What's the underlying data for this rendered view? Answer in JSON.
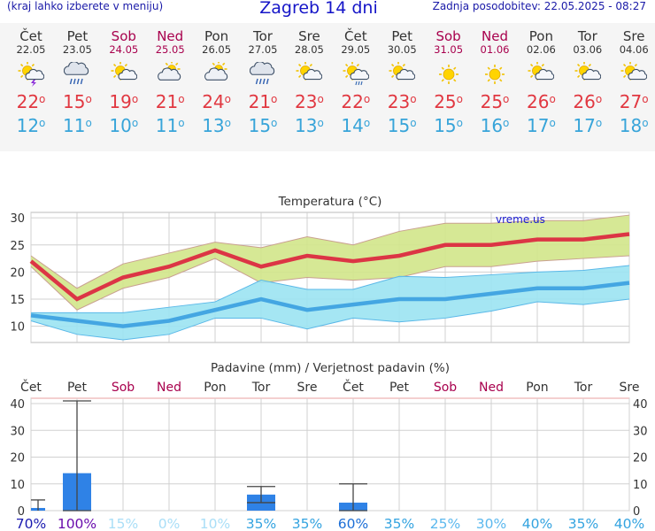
{
  "header": {
    "menu_hint": "(kraj lahko izberete v meniju)",
    "title": "Zagreb 14 dni",
    "updated": "Zadnja posodobitev: 22.05.2025 - 08:27"
  },
  "days": [
    {
      "name": "Čet",
      "date": "22.05",
      "weekend": false,
      "icon": "sun-cloud-storm-icon",
      "tmax": "22",
      "tmin": "12"
    },
    {
      "name": "Pet",
      "date": "23.05",
      "weekend": false,
      "icon": "cloud-rain-icon",
      "tmax": "15",
      "tmin": "11"
    },
    {
      "name": "Sob",
      "date": "24.05",
      "weekend": true,
      "icon": "sun-cloud-icon",
      "tmax": "19",
      "tmin": "10"
    },
    {
      "name": "Ned",
      "date": "25.05",
      "weekend": true,
      "icon": "partly-cloudy-icon",
      "tmax": "21",
      "tmin": "11"
    },
    {
      "name": "Pon",
      "date": "26.05",
      "weekend": false,
      "icon": "partly-cloudy-icon",
      "tmax": "24",
      "tmin": "13"
    },
    {
      "name": "Tor",
      "date": "27.05",
      "weekend": false,
      "icon": "cloud-rain-icon",
      "tmax": "21",
      "tmin": "15"
    },
    {
      "name": "Sre",
      "date": "28.05",
      "weekend": false,
      "icon": "sun-cloud-icon",
      "tmax": "23",
      "tmin": "13"
    },
    {
      "name": "Čet",
      "date": "29.05",
      "weekend": false,
      "icon": "sun-cloud-rain-icon",
      "tmax": "22",
      "tmin": "14"
    },
    {
      "name": "Pet",
      "date": "30.05",
      "weekend": false,
      "icon": "sun-cloud-icon",
      "tmax": "23",
      "tmin": "15"
    },
    {
      "name": "Sob",
      "date": "31.05",
      "weekend": true,
      "icon": "sun-icon",
      "tmax": "25",
      "tmin": "15"
    },
    {
      "name": "Ned",
      "date": "01.06",
      "weekend": true,
      "icon": "sun-icon",
      "tmax": "25",
      "tmin": "16"
    },
    {
      "name": "Pon",
      "date": "02.06",
      "weekend": false,
      "icon": "sun-cloud-icon",
      "tmax": "26",
      "tmin": "17"
    },
    {
      "name": "Tor",
      "date": "03.06",
      "weekend": false,
      "icon": "sun-cloud-icon",
      "tmax": "26",
      "tmin": "17"
    },
    {
      "name": "Sre",
      "date": "04.06",
      "weekend": false,
      "icon": "sun-cloud-icon",
      "tmax": "27",
      "tmin": "18"
    }
  ],
  "degree_symbol": "o",
  "chart_data": [
    {
      "type": "area",
      "title": "Temperatura (°C)",
      "watermark": "vreme.us",
      "ylim": [
        7,
        31
      ],
      "yticks": [
        10,
        15,
        20,
        25,
        30
      ],
      "grid": true,
      "x": [
        "22.05",
        "23.05",
        "24.05",
        "25.05",
        "26.05",
        "27.05",
        "28.05",
        "29.05",
        "30.05",
        "31.05",
        "01.06",
        "02.06",
        "03.06",
        "04.06"
      ],
      "series": [
        {
          "role": "max_band_upper",
          "values": [
            23,
            17,
            21.5,
            23.5,
            25.5,
            24.5,
            26.5,
            25,
            27.5,
            29,
            29,
            29.5,
            29.5,
            30.5
          ],
          "color": "#d2e58a"
        },
        {
          "role": "max_band_lower",
          "values": [
            21,
            13,
            17,
            19,
            22.5,
            18,
            19,
            18.5,
            19,
            21,
            21,
            22,
            22.5,
            23
          ]
        },
        {
          "role": "max",
          "values": [
            22,
            15,
            19,
            21,
            24,
            21,
            23,
            22,
            23,
            25,
            25,
            26,
            26,
            27
          ],
          "color": "#dc3545"
        },
        {
          "role": "min_band_upper",
          "values": [
            12.5,
            12.5,
            12.5,
            13.5,
            14.5,
            18.5,
            16.8,
            16.8,
            19.2,
            19,
            19.5,
            20,
            20.3,
            21.2
          ],
          "color": "#9be3f2"
        },
        {
          "role": "min_band_lower",
          "values": [
            11,
            8.5,
            7.5,
            8.5,
            11.5,
            11.5,
            9.5,
            11.5,
            10.8,
            11.5,
            12.8,
            14.5,
            14,
            15
          ],
          "color": "#5ab8e8"
        },
        {
          "role": "min",
          "values": [
            12,
            11,
            10,
            11,
            13,
            15,
            13,
            14,
            15,
            15,
            16,
            17,
            17,
            18
          ],
          "color": "#44a6e2"
        }
      ]
    },
    {
      "type": "bar",
      "title": "Padavine (mm) / Verjetnost padavin (%)",
      "ylim": [
        0,
        42
      ],
      "yticks": [
        0,
        10,
        20,
        30,
        40
      ],
      "grid": true,
      "categories": [
        "Čet",
        "Pet",
        "Sob",
        "Ned",
        "Pon",
        "Tor",
        "Sre",
        "Čet",
        "Pet",
        "Sob",
        "Ned",
        "Pon",
        "Tor",
        "Sre"
      ],
      "weekend": [
        false,
        false,
        true,
        true,
        false,
        false,
        false,
        false,
        false,
        true,
        true,
        false,
        false,
        false
      ],
      "precip_mm": [
        1,
        14,
        0,
        0,
        0,
        6,
        0,
        3,
        0,
        0,
        0,
        0,
        0,
        0
      ],
      "error_low": [
        null,
        0,
        null,
        null,
        null,
        3,
        null,
        0,
        null,
        null,
        null,
        null,
        null,
        null
      ],
      "error_high": [
        4,
        41,
        null,
        null,
        null,
        9,
        null,
        10,
        null,
        null,
        null,
        null,
        null,
        null
      ],
      "probability": [
        "70%",
        "100%",
        "15%",
        "0%",
        "10%",
        "35%",
        "35%",
        "60%",
        "35%",
        "25%",
        "30%",
        "40%",
        "35%",
        "40%"
      ],
      "probability_colors": [
        "#1a1ab0",
        "#6a0dad",
        "#a9def7",
        "#a9def7",
        "#a9def7",
        "#33a3e0",
        "#33a3e0",
        "#1c6ed6",
        "#33a3e0",
        "#5bb8ee",
        "#5bb8ee",
        "#33a3e0",
        "#33a3e0",
        "#33a3e0"
      ],
      "bar_color": "#2f82e6"
    }
  ]
}
